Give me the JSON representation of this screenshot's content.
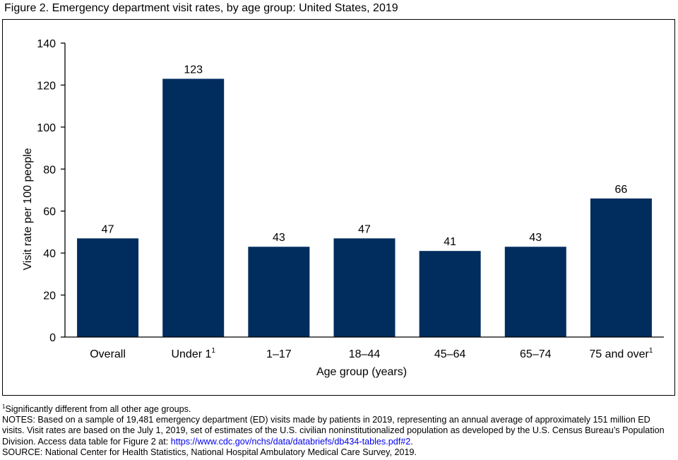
{
  "figure": {
    "title": "Figure 2. Emergency department visit rates, by age group: United States, 2019"
  },
  "colors": {
    "bar": "#002d5e",
    "axis": "#000000",
    "link": "#0000ee"
  },
  "chart_data": {
    "type": "bar",
    "title": "",
    "xlabel": "Age group (years)",
    "ylabel": "Visit rate per 100 people",
    "ylim": [
      0,
      140
    ],
    "yticks": [
      0,
      20,
      40,
      60,
      80,
      100,
      120,
      140
    ],
    "grid": false,
    "categories": [
      {
        "label": "Overall",
        "sup": ""
      },
      {
        "label": "Under 1",
        "sup": "1"
      },
      {
        "label": "1–17",
        "sup": ""
      },
      {
        "label": "18–44",
        "sup": ""
      },
      {
        "label": "45–64",
        "sup": ""
      },
      {
        "label": "65–74",
        "sup": ""
      },
      {
        "label": "75 and over",
        "sup": "1"
      }
    ],
    "values": [
      47,
      123,
      43,
      47,
      41,
      43,
      66
    ],
    "value_labels": [
      "47",
      "123",
      "43",
      "47",
      "41",
      "43",
      "66"
    ]
  },
  "notes": {
    "footnote_marker": "1",
    "footnote_text": "Significantly different from all other age groups.",
    "notes_text": "NOTES: Based on a sample of 19,481 emergency department (ED) visits made by patients in 2019, representing an annual average of approximately 151 million ED visits. Visit rates are based on the July 1, 2019, set of estimates of the U.S. civilian noninstitutionalized population as developed by the U.S. Census Bureau’s Population Division. Access data table for Figure 2 at: ",
    "link_text": "https://www.cdc.gov/nchs/data/databriefs/db434-tables.pdf#2",
    "notes_end": ".",
    "source_text": "SOURCE: National Center for Health Statistics, National Hospital Ambulatory Medical Care Survey, 2019."
  }
}
